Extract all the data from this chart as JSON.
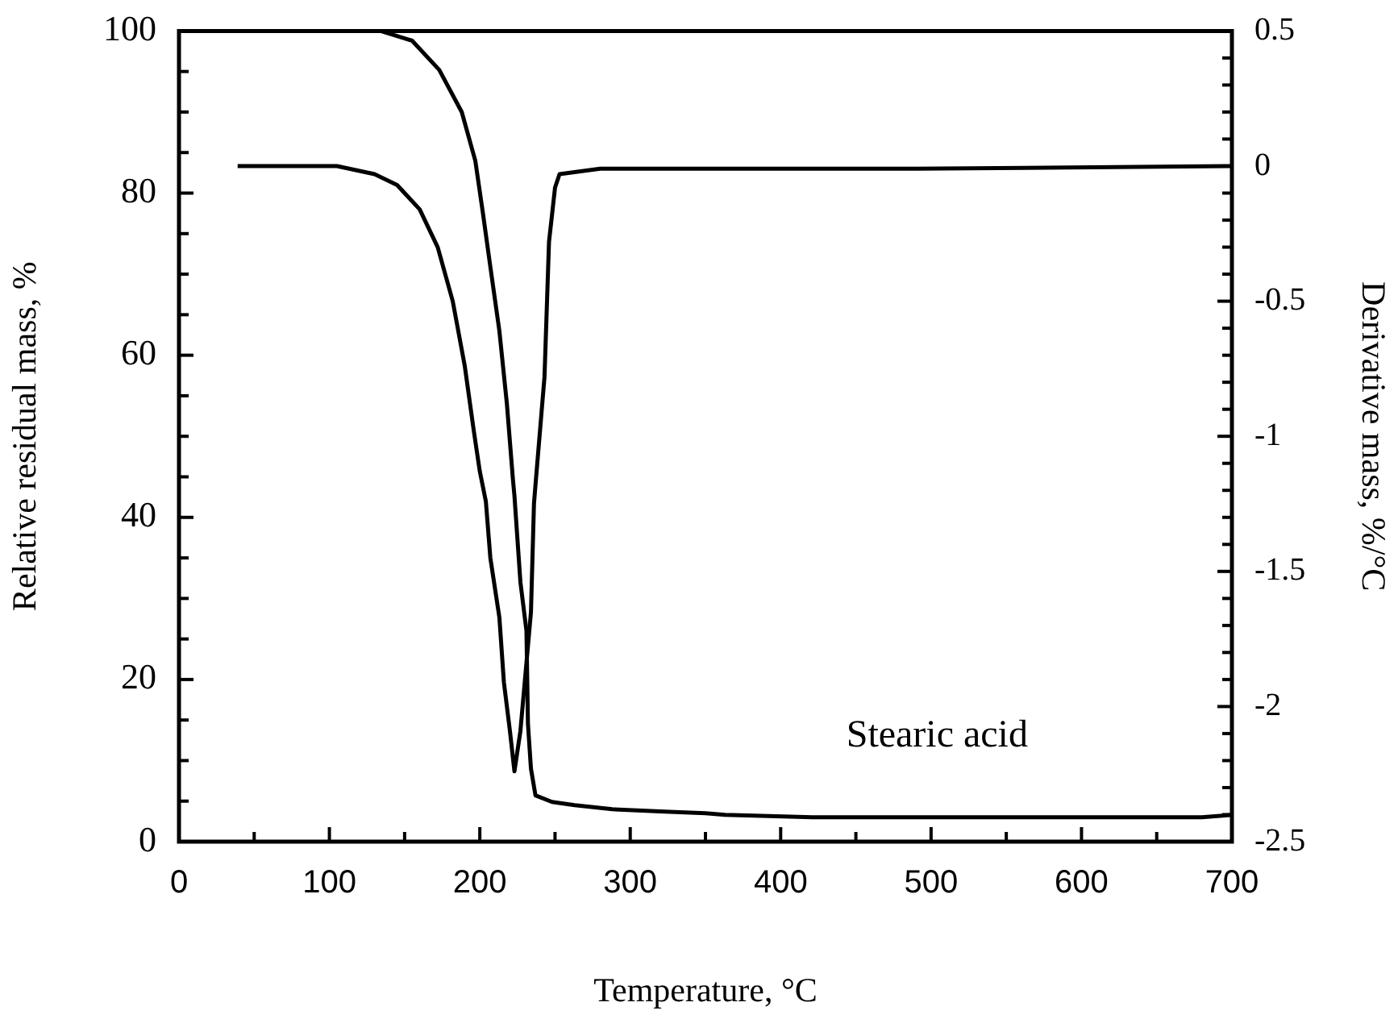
{
  "chart_data": {
    "type": "line",
    "xlabel": "Temperature, °C",
    "ylabel": "Relative residual mass, %",
    "y2label": "Derivative mass, %/°C",
    "annotations": [
      "Stearic acid"
    ],
    "marker": "none",
    "line_style": "solid",
    "xlim": [
      0,
      700
    ],
    "xticks": [
      0,
      {
        "value": 50,
        "label": null
      },
      100,
      {
        "value": 150,
        "label": null
      },
      200,
      {
        "value": 250,
        "label": null
      },
      300,
      {
        "value": 350,
        "label": null
      },
      400,
      {
        "value": 450,
        "label": null
      },
      500,
      {
        "value": 550,
        "label": null
      },
      600,
      {
        "value": 650,
        "label": null
      },
      700
    ],
    "ylim": [
      0,
      100
    ],
    "yticks": [
      0,
      {
        "value": 5,
        "label": null
      },
      {
        "value": 10,
        "label": null
      },
      {
        "value": 15,
        "label": null
      },
      20,
      {
        "value": 25,
        "label": null
      },
      {
        "value": 30,
        "label": null
      },
      {
        "value": 35,
        "label": null
      },
      40,
      {
        "value": 45,
        "label": null
      },
      {
        "value": 50,
        "label": null
      },
      {
        "value": 55,
        "label": null
      },
      60,
      {
        "value": 65,
        "label": null
      },
      {
        "value": 70,
        "label": null
      },
      {
        "value": 75,
        "label": null
      },
      80,
      {
        "value": 85,
        "label": null
      },
      {
        "value": 90,
        "label": null
      },
      {
        "value": 95,
        "label": null
      },
      100
    ],
    "y2lim": [
      -2.5,
      0.5
    ],
    "y2ticks": [
      -2.5,
      {
        "value": -2.4,
        "label": null
      },
      {
        "value": -2.3,
        "label": null
      },
      {
        "value": -2.2,
        "label": null
      },
      {
        "value": -2.1,
        "label": null
      },
      -2,
      {
        "value": -1.9,
        "label": null
      },
      {
        "value": -1.8,
        "label": null
      },
      {
        "value": -1.7,
        "label": null
      },
      {
        "value": -1.6,
        "label": null
      },
      -1.5,
      {
        "value": -1.4,
        "label": null
      },
      {
        "value": -1.3,
        "label": null
      },
      {
        "value": -1.2,
        "label": null
      },
      {
        "value": -1.1,
        "label": null
      },
      -1,
      {
        "value": -0.9,
        "label": null
      },
      {
        "value": -0.8,
        "label": null
      },
      {
        "value": -0.7,
        "label": null
      },
      {
        "value": -0.6,
        "label": null
      },
      -0.5,
      {
        "value": -0.4,
        "label": null
      },
      {
        "value": -0.3,
        "label": null
      },
      {
        "value": -0.2,
        "label": null
      },
      {
        "value": -0.1,
        "label": null
      },
      0,
      {
        "value": 0.1,
        "label": null
      },
      {
        "value": 0.2,
        "label": null
      },
      {
        "value": 0.3,
        "label": null
      },
      {
        "value": 0.4,
        "label": null
      },
      0.5
    ],
    "series": [
      {
        "color": "#000000",
        "x": [
          39,
          134,
          155,
          173,
          188,
          197,
          202,
          207,
          213,
          218,
          222,
          223,
          227,
          231,
          232,
          234,
          237,
          248,
          263,
          288,
          323,
          350,
          363,
          421,
          500,
          600,
          680,
          700
        ],
        "values": [
          100,
          100,
          98.8,
          95.2,
          90,
          84,
          77.6,
          70.9,
          63,
          54,
          44.7,
          42.7,
          32,
          26,
          14.5,
          9,
          5.7,
          4.9,
          4.5,
          4,
          3.7,
          3.5,
          3.3,
          3,
          3,
          3,
          3,
          3.3
        ]
      },
      {
        "color": "#000000",
        "axis": "y2",
        "x": [
          39,
          105,
          130,
          145,
          160,
          172,
          182,
          190,
          196,
          200,
          204,
          207,
          213,
          216,
          220,
          223,
          227,
          234,
          236,
          237,
          243,
          246,
          250,
          253,
          280,
          490,
          700
        ],
        "values": [
          0,
          0,
          -0.03,
          -0.07,
          -0.16,
          -0.3,
          -0.5,
          -0.74,
          -0.98,
          -1.13,
          -1.24,
          -1.45,
          -1.67,
          -1.91,
          -2.09,
          -2.24,
          -2.09,
          -1.65,
          -1.25,
          -1.18,
          -0.78,
          -0.28,
          -0.08,
          -0.03,
          -0.01,
          -0.01,
          0
        ]
      }
    ]
  }
}
